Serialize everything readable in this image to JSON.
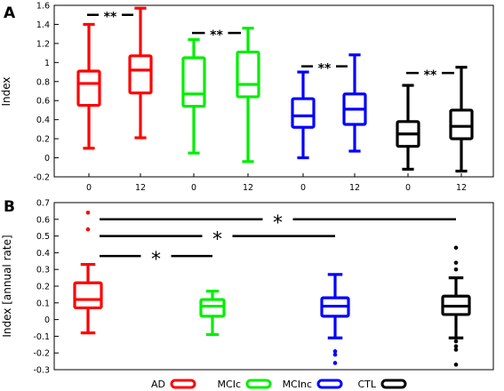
{
  "chart_data": [
    {
      "panel": "A",
      "type": "box",
      "ylabel": "Index",
      "ylim": [
        -0.2,
        1.6
      ],
      "yticks": [
        -0.2,
        0,
        0.2,
        0.4,
        0.6,
        0.8,
        1,
        1.2,
        1.4,
        1.6
      ],
      "ytick_labels": [
        "-0.2",
        "0",
        "0.2",
        "0.4",
        "0.6",
        "0.8",
        "1",
        "1.2",
        "1.4",
        "1.6"
      ],
      "grid": false,
      "boxes": [
        {
          "x_label": "0",
          "group": "AD",
          "color": "#ff0000",
          "min": 0.1,
          "q1": 0.55,
          "median": 0.78,
          "q3": 0.91,
          "max": 1.4,
          "outliers": []
        },
        {
          "x_label": "12",
          "group": "AD",
          "color": "#ff0000",
          "min": 0.21,
          "q1": 0.68,
          "median": 0.92,
          "q3": 1.07,
          "max": 1.57,
          "outliers": []
        },
        {
          "x_label": "0",
          "group": "MCIc",
          "color": "#00ee00",
          "min": 0.05,
          "q1": 0.54,
          "median": 0.67,
          "q3": 1.05,
          "max": 1.24,
          "outliers": []
        },
        {
          "x_label": "12",
          "group": "MCIc",
          "color": "#00ee00",
          "min": -0.04,
          "q1": 0.64,
          "median": 0.77,
          "q3": 1.11,
          "max": 1.36,
          "outliers": []
        },
        {
          "x_label": "0",
          "group": "MCInc",
          "color": "#0000ff",
          "min": 0.0,
          "q1": 0.32,
          "median": 0.44,
          "q3": 0.62,
          "max": 0.9,
          "outliers": []
        },
        {
          "x_label": "12",
          "group": "MCInc",
          "color": "#0000ff",
          "min": 0.07,
          "q1": 0.35,
          "median": 0.51,
          "q3": 0.67,
          "max": 1.08,
          "outliers": []
        },
        {
          "x_label": "0",
          "group": "CTL",
          "color": "#000000",
          "min": -0.12,
          "q1": 0.12,
          "median": 0.25,
          "q3": 0.38,
          "max": 0.76,
          "outliers": []
        },
        {
          "x_label": "12",
          "group": "CTL",
          "color": "#000000",
          "min": -0.14,
          "q1": 0.2,
          "median": 0.33,
          "q3": 0.5,
          "max": 0.95,
          "outliers": []
        }
      ],
      "annotations": [
        {
          "text": "**",
          "between": [
            0,
            1
          ],
          "y": 1.5
        },
        {
          "text": "**",
          "between": [
            2,
            3
          ],
          "y": 1.31
        },
        {
          "text": "**",
          "between": [
            4,
            5
          ],
          "y": 0.96
        },
        {
          "text": "**",
          "between": [
            6,
            7
          ],
          "y": 0.89
        }
      ]
    },
    {
      "panel": "B",
      "type": "box",
      "ylabel": "Index [annual rate]",
      "ylim": [
        -0.3,
        0.7
      ],
      "yticks": [
        -0.3,
        -0.2,
        -0.1,
        0,
        0.1,
        0.2,
        0.3,
        0.4,
        0.5,
        0.6,
        0.7
      ],
      "ytick_labels": [
        "-0.3",
        "-0.2",
        "-0.1",
        "0",
        "0.1",
        "0.2",
        "0.3",
        "0.4",
        "0.5",
        "0.6",
        "0.7"
      ],
      "grid": false,
      "boxes": [
        {
          "group": "AD",
          "color": "#ff0000",
          "min": -0.08,
          "q1": 0.07,
          "median": 0.12,
          "q3": 0.22,
          "max": 0.33,
          "outliers": [
            0.64,
            0.54
          ]
        },
        {
          "group": "MCIc",
          "color": "#00ee00",
          "min": -0.09,
          "q1": 0.02,
          "median": 0.08,
          "q3": 0.12,
          "max": 0.17,
          "outliers": []
        },
        {
          "group": "MCInc",
          "color": "#0000ff",
          "min": -0.11,
          "q1": 0.02,
          "median": 0.08,
          "q3": 0.13,
          "max": 0.27,
          "outliers": [
            -0.19,
            -0.21,
            -0.26
          ]
        },
        {
          "group": "CTL",
          "color": "#000000",
          "min": -0.11,
          "q1": 0.03,
          "median": 0.08,
          "q3": 0.14,
          "max": 0.25,
          "outliers": [
            0.43,
            0.34,
            0.3,
            -0.13,
            -0.16,
            -0.18,
            -0.27
          ]
        }
      ],
      "annotations": [
        {
          "text": "*",
          "between": [
            0,
            3
          ],
          "y": 0.6
        },
        {
          "text": "*",
          "between": [
            0,
            2
          ],
          "y": 0.5
        },
        {
          "text": "*",
          "between": [
            0,
            1
          ],
          "y": 0.38
        }
      ]
    }
  ],
  "legend": {
    "placement": "bottom",
    "items": [
      {
        "label": "AD",
        "color": "#ff0000"
      },
      {
        "label": "MCIc",
        "color": "#00ee00"
      },
      {
        "label": "MCInc",
        "color": "#0000ff"
      },
      {
        "label": "CTL",
        "color": "#000000"
      }
    ]
  }
}
